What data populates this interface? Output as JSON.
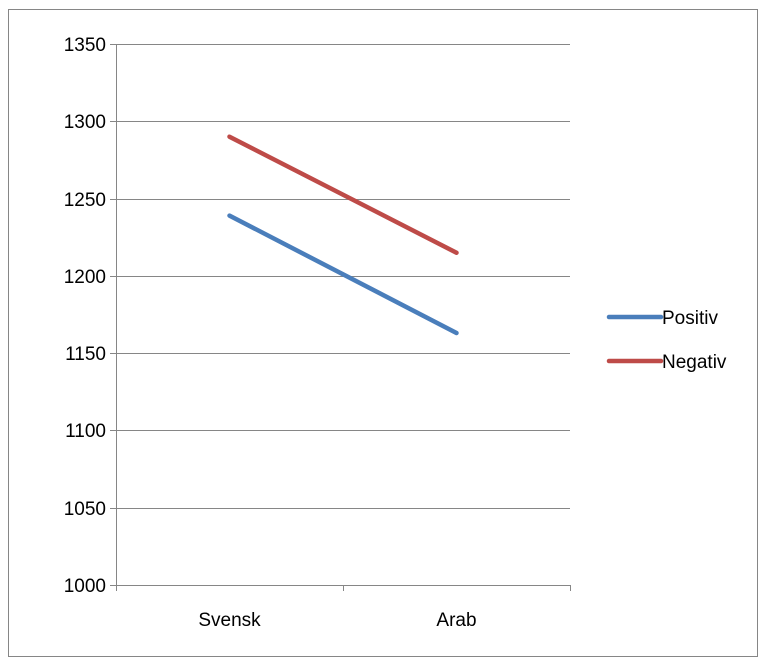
{
  "chart_data": {
    "type": "line",
    "title": "",
    "xlabel": "",
    "ylabel": "",
    "categories": [
      "Svensk",
      "Arab"
    ],
    "series": [
      {
        "name": "Positiv",
        "values": [
          1239,
          1163
        ],
        "color": "#4a7ebb"
      },
      {
        "name": "Negativ",
        "values": [
          1290,
          1215
        ],
        "color": "#be4b48"
      }
    ],
    "ylim": [
      1000,
      1350
    ],
    "yticks": [
      1000,
      1050,
      1100,
      1150,
      1200,
      1250,
      1300,
      1350
    ],
    "grid": "horizontal",
    "legend_position": "right"
  }
}
